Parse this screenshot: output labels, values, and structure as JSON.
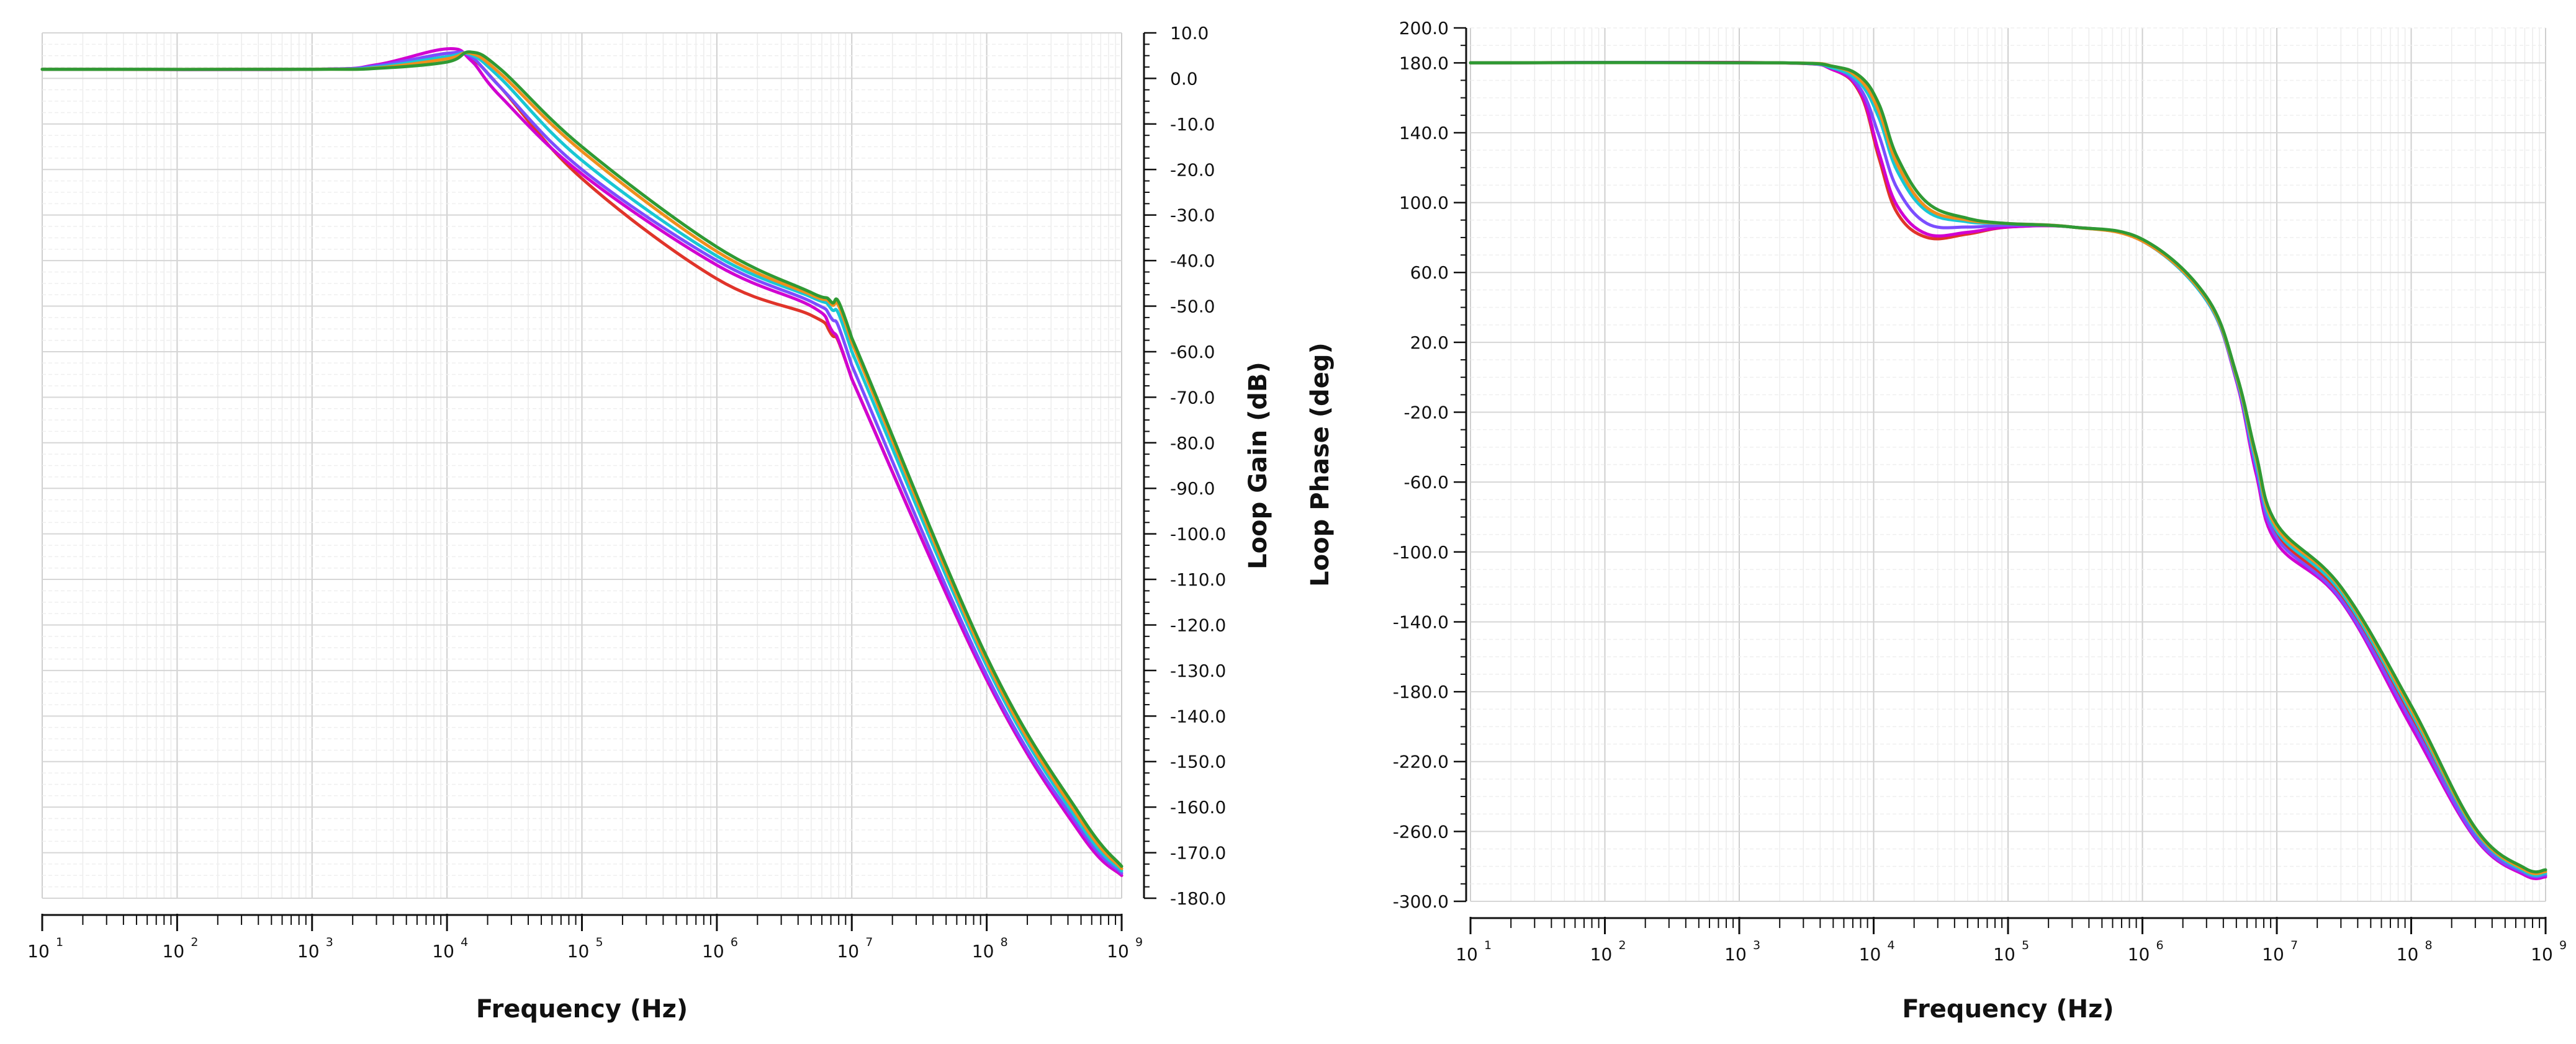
{
  "chart_data": [
    {
      "type": "line",
      "ylabel": "Loop Gain (dB)",
      "xlabel": "Frequency (Hz)",
      "xscale": "log",
      "xlim": [
        10,
        1000000000
      ],
      "ylim": [
        -180,
        10
      ],
      "grid": true,
      "x_tick_labels": [
        {
          "base": "10",
          "exp": "1"
        },
        {
          "base": "10",
          "exp": "2"
        },
        {
          "base": "10",
          "exp": "3"
        },
        {
          "base": "10",
          "exp": "4"
        },
        {
          "base": "10",
          "exp": "5"
        },
        {
          "base": "10",
          "exp": "6"
        },
        {
          "base": "10",
          "exp": "7"
        },
        {
          "base": "10",
          "exp": "8"
        },
        {
          "base": "10",
          "exp": "9"
        }
      ],
      "y_ticks": [
        10,
        0,
        -10,
        -20,
        -30,
        -40,
        -50,
        -60,
        -70,
        -80,
        -90,
        -100,
        -110,
        -120,
        -130,
        -140,
        -150,
        -160,
        -170,
        -180
      ],
      "y_tick_labels": [
        "10.0",
        "0.0",
        "-10.0",
        "-20.0",
        "-30.0",
        "-40.0",
        "-50.0",
        "-60.0",
        "-70.0",
        "-80.0",
        "-90.0",
        "-100.0",
        "-110.0",
        "-120.0",
        "-130.0",
        "-140.0",
        "-150.0",
        "-160.0",
        "-170.0",
        "-180.0"
      ],
      "y_axis_side": "right",
      "x": [
        10,
        1000,
        3000,
        10000,
        15000,
        25000,
        100000,
        1000000,
        5000000,
        7000000,
        10000000,
        100000000,
        500000000,
        1000000000
      ],
      "series": [
        {
          "color": "#e0342a",
          "values": [
            2,
            2,
            2.6,
            5.5,
            4.5,
            -2,
            -22,
            -44,
            -52,
            -56,
            -66,
            -132,
            -166,
            -175
          ]
        },
        {
          "color": "#d100d1",
          "values": [
            2,
            2,
            3,
            6.5,
            4,
            -4,
            -21,
            -41,
            -50,
            -55,
            -66,
            -132,
            -166,
            -175
          ]
        },
        {
          "color": "#7b4dff",
          "values": [
            2,
            2,
            2.8,
            5.5,
            4.8,
            -2,
            -20,
            -40,
            -49,
            -52.5,
            -63,
            -131,
            -165,
            -174.5
          ]
        },
        {
          "color": "#18c7d4",
          "values": [
            2,
            2,
            2.5,
            4.8,
            5.2,
            0,
            -18,
            -39,
            -48,
            -50.5,
            -60,
            -129,
            -164,
            -174
          ]
        },
        {
          "color": "#f08f1c",
          "values": [
            2,
            2,
            2.3,
            4.3,
            5.5,
            1,
            -16,
            -38,
            -47.5,
            -49.5,
            -58,
            -128,
            -163,
            -173.5
          ]
        },
        {
          "color": "#2f9a34",
          "values": [
            2,
            2,
            2.2,
            3.6,
            5.8,
            2,
            -15,
            -37,
            -47,
            -49,
            -57,
            -127,
            -162,
            -173
          ]
        }
      ]
    },
    {
      "type": "line",
      "ylabel": "Loop Phase (deg)",
      "xlabel": "Frequency (Hz)",
      "xscale": "log",
      "xlim": [
        10,
        1000000000
      ],
      "ylim": [
        -300,
        200
      ],
      "grid": true,
      "x_tick_labels": [
        {
          "base": "10",
          "exp": "1"
        },
        {
          "base": "10",
          "exp": "2"
        },
        {
          "base": "10",
          "exp": "3"
        },
        {
          "base": "10",
          "exp": "4"
        },
        {
          "base": "10",
          "exp": "5"
        },
        {
          "base": "10",
          "exp": "6"
        },
        {
          "base": "10",
          "exp": "7"
        },
        {
          "base": "10",
          "exp": "8"
        },
        {
          "base": "10",
          "exp": "9"
        }
      ],
      "y_ticks": [
        200,
        180,
        140,
        100,
        60,
        20,
        -20,
        -60,
        -100,
        -140,
        -180,
        -220,
        -260,
        -300
      ],
      "y_tick_labels": [
        "200.0",
        "180.0",
        "140.0",
        "100.0",
        "60.0",
        "20.0",
        "-20.0",
        "-60.0",
        "-100.0",
        "-140.0",
        "-180.0",
        "-220.0",
        "-260.0",
        "-300.0"
      ],
      "y_axis_side": "left",
      "x": [
        10,
        2000,
        5000,
        8000,
        11000,
        15000,
        25000,
        50000,
        100000,
        300000,
        1000000,
        3000000,
        5000000,
        7000000,
        10000000,
        30000000,
        100000000,
        300000000,
        700000000,
        1000000000
      ],
      "series": [
        {
          "color": "#e0342a",
          "values": [
            180,
            180,
            176,
            162,
            125,
            94,
            80,
            82,
            86,
            86,
            78,
            45,
            0,
            -50,
            -90,
            -125,
            -195,
            -262,
            -284,
            -285
          ]
        },
        {
          "color": "#d100d1",
          "values": [
            180,
            180,
            176,
            163,
            128,
            98,
            82,
            83,
            86,
            86,
            78,
            44,
            -2,
            -55,
            -95,
            -128,
            -200,
            -264,
            -285,
            -286
          ]
        },
        {
          "color": "#7b4dff",
          "values": [
            180,
            180,
            177,
            165,
            138,
            108,
            88,
            86,
            87,
            86,
            78,
            44,
            -1,
            -52,
            -92,
            -127,
            -197,
            -263,
            -284,
            -285
          ]
        },
        {
          "color": "#18c7d4",
          "values": [
            180,
            180,
            177,
            168,
            148,
            118,
            95,
            89,
            88,
            86,
            78,
            44,
            0,
            -49,
            -88,
            -123,
            -192,
            -260,
            -283,
            -284
          ]
        },
        {
          "color": "#f08f1c",
          "values": [
            180,
            180,
            178,
            170,
            152,
            122,
            97,
            90,
            88,
            86,
            78,
            45,
            1,
            -46,
            -86,
            -121,
            -190,
            -259,
            -282,
            -283
          ]
        },
        {
          "color": "#2f9a34",
          "values": [
            180,
            180,
            178,
            172,
            156,
            126,
            100,
            91,
            88,
            86,
            79,
            46,
            2,
            -44,
            -84,
            -120,
            -188,
            -258,
            -281,
            -282
          ]
        }
      ]
    }
  ]
}
